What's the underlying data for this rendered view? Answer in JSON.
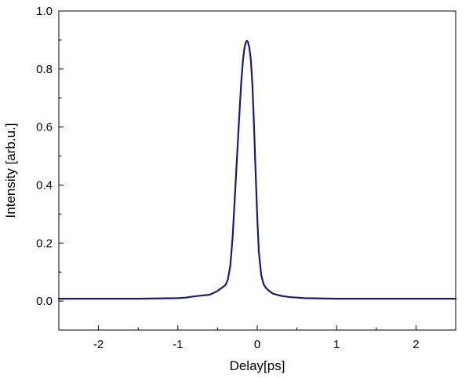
{
  "chart_data": {
    "type": "line",
    "xlabel": "Delay[ps]",
    "ylabel": "Intensity [arb.u.]",
    "xlim": [
      -2.5,
      2.5
    ],
    "ylim": [
      -0.1,
      1.0
    ],
    "x_ticks": [
      -2,
      -1,
      0,
      1,
      2
    ],
    "x_tick_labels": [
      "-2",
      "-1",
      "0",
      "1",
      "2"
    ],
    "y_ticks": [
      0.0,
      0.2,
      0.4,
      0.6,
      0.8,
      1.0
    ],
    "y_tick_labels": [
      "0.0",
      "0.2",
      "0.4",
      "0.6",
      "0.8",
      "1.0"
    ],
    "grid": false,
    "line_color": "#1a1a7a",
    "series": [
      {
        "x": [
          -2.5,
          -1.5,
          -1.0,
          -0.9,
          -0.8,
          -0.7,
          -0.6,
          -0.55,
          -0.5,
          -0.45,
          -0.4,
          -0.37,
          -0.34,
          -0.31,
          -0.28,
          -0.25,
          -0.22,
          -0.2,
          -0.18,
          -0.16,
          -0.14,
          -0.13,
          -0.12,
          -0.1,
          -0.08,
          -0.06,
          -0.04,
          -0.02,
          0.0,
          0.02,
          0.05,
          0.08,
          0.11,
          0.15,
          0.2,
          0.3,
          0.4,
          0.5,
          0.6,
          0.8,
          1.0,
          1.5,
          2.0,
          2.5
        ],
        "y": [
          0.008,
          0.008,
          0.01,
          0.012,
          0.016,
          0.019,
          0.022,
          0.028,
          0.035,
          0.045,
          0.055,
          0.075,
          0.12,
          0.22,
          0.37,
          0.52,
          0.67,
          0.76,
          0.83,
          0.875,
          0.895,
          0.897,
          0.895,
          0.875,
          0.83,
          0.74,
          0.6,
          0.44,
          0.29,
          0.17,
          0.09,
          0.058,
          0.045,
          0.035,
          0.025,
          0.018,
          0.014,
          0.012,
          0.01,
          0.009,
          0.008,
          0.008,
          0.008,
          0.008
        ]
      }
    ]
  }
}
